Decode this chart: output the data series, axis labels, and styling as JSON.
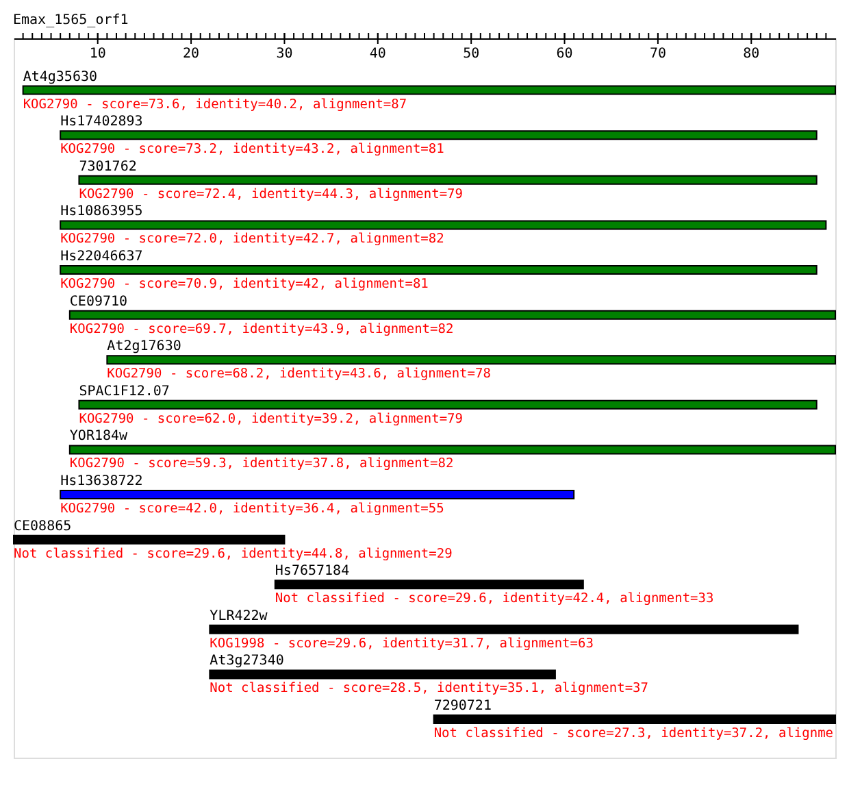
{
  "chart_data": {
    "type": "bar",
    "orientation": "horizontal",
    "title": "Emax_1565_orf1",
    "categories": [
      "At4g35630",
      "Hs17402893",
      "7301762",
      "Hs10863955",
      "Hs22046637",
      "CE09710",
      "At2g17630",
      "SPAC1F12.07",
      "YOR184w",
      "Hs13638722",
      "CE08865",
      "Hs7657184",
      "YLR422w",
      "At3g27340",
      "7290721"
    ],
    "base": [
      2,
      6,
      8,
      6,
      6,
      7,
      11,
      8,
      7,
      6,
      1,
      29,
      22,
      22,
      46
    ],
    "values": [
      87,
      81,
      79,
      82,
      81,
      82,
      78,
      79,
      82,
      55,
      29,
      33,
      63,
      37,
      43
    ],
    "colors": [
      "#008000",
      "#008000",
      "#008000",
      "#008000",
      "#008000",
      "#008000",
      "#008000",
      "#008000",
      "#008000",
      "#0000ff",
      "#000000",
      "#000000",
      "#000000",
      "#000000",
      "#000000"
    ],
    "xlim": [
      1,
      89
    ],
    "xticks": [
      {
        "value": 2,
        "label": null
      },
      {
        "value": 3,
        "label": null
      },
      {
        "value": 4,
        "label": null
      },
      {
        "value": 5,
        "label": null
      },
      {
        "value": 6,
        "label": null
      },
      {
        "value": 7,
        "label": null
      },
      {
        "value": 8,
        "label": null
      },
      {
        "value": 9,
        "label": null
      },
      10,
      {
        "value": 11,
        "label": null
      },
      {
        "value": 12,
        "label": null
      },
      {
        "value": 13,
        "label": null
      },
      {
        "value": 14,
        "label": null
      },
      {
        "value": 15,
        "label": null
      },
      {
        "value": 16,
        "label": null
      },
      {
        "value": 17,
        "label": null
      },
      {
        "value": 18,
        "label": null
      },
      {
        "value": 19,
        "label": null
      },
      20,
      {
        "value": 21,
        "label": null
      },
      {
        "value": 22,
        "label": null
      },
      {
        "value": 23,
        "label": null
      },
      {
        "value": 24,
        "label": null
      },
      {
        "value": 25,
        "label": null
      },
      {
        "value": 26,
        "label": null
      },
      {
        "value": 27,
        "label": null
      },
      {
        "value": 28,
        "label": null
      },
      {
        "value": 29,
        "label": null
      },
      30,
      {
        "value": 31,
        "label": null
      },
      {
        "value": 32,
        "label": null
      },
      {
        "value": 33,
        "label": null
      },
      {
        "value": 34,
        "label": null
      },
      {
        "value": 35,
        "label": null
      },
      {
        "value": 36,
        "label": null
      },
      {
        "value": 37,
        "label": null
      },
      {
        "value": 38,
        "label": null
      },
      {
        "value": 39,
        "label": null
      },
      40,
      {
        "value": 41,
        "label": null
      },
      {
        "value": 42,
        "label": null
      },
      {
        "value": 43,
        "label": null
      },
      {
        "value": 44,
        "label": null
      },
      {
        "value": 45,
        "label": null
      },
      {
        "value": 46,
        "label": null
      },
      {
        "value": 47,
        "label": null
      },
      {
        "value": 48,
        "label": null
      },
      {
        "value": 49,
        "label": null
      },
      50,
      {
        "value": 51,
        "label": null
      },
      {
        "value": 52,
        "label": null
      },
      {
        "value": 53,
        "label": null
      },
      {
        "value": 54,
        "label": null
      },
      {
        "value": 55,
        "label": null
      },
      {
        "value": 56,
        "label": null
      },
      {
        "value": 57,
        "label": null
      },
      {
        "value": 58,
        "label": null
      },
      {
        "value": 59,
        "label": null
      },
      60,
      {
        "value": 61,
        "label": null
      },
      {
        "value": 62,
        "label": null
      },
      {
        "value": 63,
        "label": null
      },
      {
        "value": 64,
        "label": null
      },
      {
        "value": 65,
        "label": null
      },
      {
        "value": 66,
        "label": null
      },
      {
        "value": 67,
        "label": null
      },
      {
        "value": 68,
        "label": null
      },
      {
        "value": 69,
        "label": null
      },
      70,
      {
        "value": 71,
        "label": null
      },
      {
        "value": 72,
        "label": null
      },
      {
        "value": 73,
        "label": null
      },
      {
        "value": 74,
        "label": null
      },
      {
        "value": 75,
        "label": null
      },
      {
        "value": 76,
        "label": null
      },
      {
        "value": 77,
        "label": null
      },
      {
        "value": 78,
        "label": null
      },
      {
        "value": 79,
        "label": null
      },
      80,
      {
        "value": 81,
        "label": null
      },
      {
        "value": 82,
        "label": null
      },
      {
        "value": 83,
        "label": null
      },
      {
        "value": 84,
        "label": null
      },
      {
        "value": 85,
        "label": null
      },
      {
        "value": 86,
        "label": null
      },
      {
        "value": 87,
        "label": null
      },
      {
        "value": 88,
        "label": null
      }
    ],
    "annotations": [
      "KOG2790 - score=73.6, identity=40.2, alignment=87",
      "KOG2790 - score=73.2, identity=43.2, alignment=81",
      "KOG2790 - score=72.4, identity=44.3, alignment=79",
      "KOG2790 - score=72.0, identity=42.7, alignment=82",
      "KOG2790 - score=70.9, identity=42, alignment=81",
      "KOG2790 - score=69.7, identity=43.9, alignment=82",
      "KOG2790 - score=68.2, identity=43.6, alignment=78",
      "KOG2790 - score=62.0, identity=39.2, alignment=79",
      "KOG2790 - score=59.3, identity=37.8, alignment=82",
      "KOG2790 - score=42.0, identity=36.4, alignment=55",
      "Not classified - score=29.6, identity=44.8, alignment=29",
      "Not classified - score=29.6, identity=42.4, alignment=33",
      "KOG1998 - score=29.6, identity=31.7, alignment=63",
      "Not classified - score=28.5, identity=35.1, alignment=37",
      "Not classified - score=27.3, identity=37.2, alignme"
    ]
  }
}
